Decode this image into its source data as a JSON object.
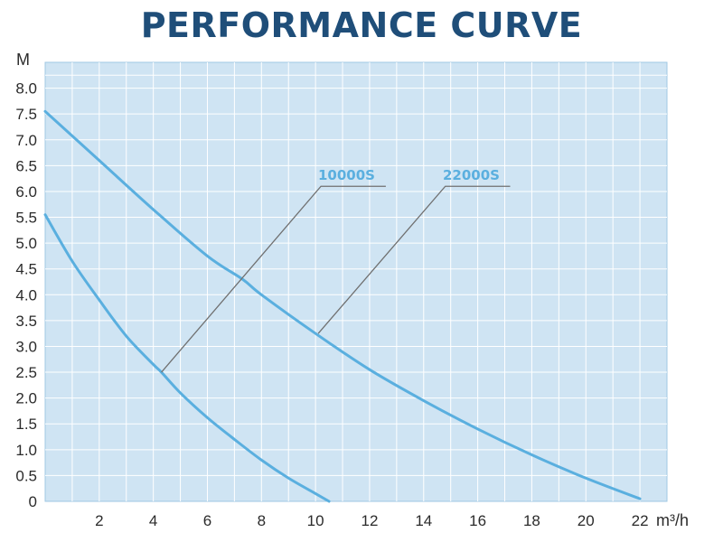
{
  "chart_data": {
    "type": "line",
    "title": "PERFORMANCE CURVE",
    "ylabel": "M",
    "xlabel": "m³/h",
    "xlim": [
      0,
      23
    ],
    "ylim": [
      0,
      8.5
    ],
    "x_ticks": [
      "2",
      "4",
      "6",
      "8",
      "10",
      "12",
      "14",
      "16",
      "18",
      "20",
      "22"
    ],
    "y_ticks": [
      "0",
      "0.5",
      "1.0",
      "1.5",
      "2.0",
      "2.5",
      "3.0",
      "3.5",
      "4.0",
      "4.5",
      "5.0",
      "5.5",
      "6.0",
      "6.5",
      "7.0",
      "7.5",
      "8.0"
    ],
    "grid": true,
    "series": [
      {
        "name": "10000S",
        "x": [
          0,
          1,
          2,
          3,
          4,
          4.3,
          5,
          6,
          7,
          8,
          9,
          10,
          10.5
        ],
        "y": [
          5.55,
          4.65,
          3.9,
          3.2,
          2.65,
          2.5,
          2.1,
          1.62,
          1.2,
          0.8,
          0.45,
          0.15,
          0
        ]
      },
      {
        "name": "22000S",
        "x": [
          0,
          2,
          4,
          6,
          7.3,
          8,
          10,
          12,
          14,
          16,
          18,
          20,
          22
        ],
        "y": [
          7.55,
          6.6,
          5.65,
          4.75,
          4.3,
          4.0,
          3.25,
          2.55,
          1.95,
          1.4,
          0.9,
          0.45,
          0.05
        ]
      }
    ],
    "colors": {
      "curve": "#5aafdf",
      "plot_bg": "#cfe4f3",
      "grid": "#ffffff",
      "leader": "#707070",
      "title": "#1f4e79"
    }
  }
}
